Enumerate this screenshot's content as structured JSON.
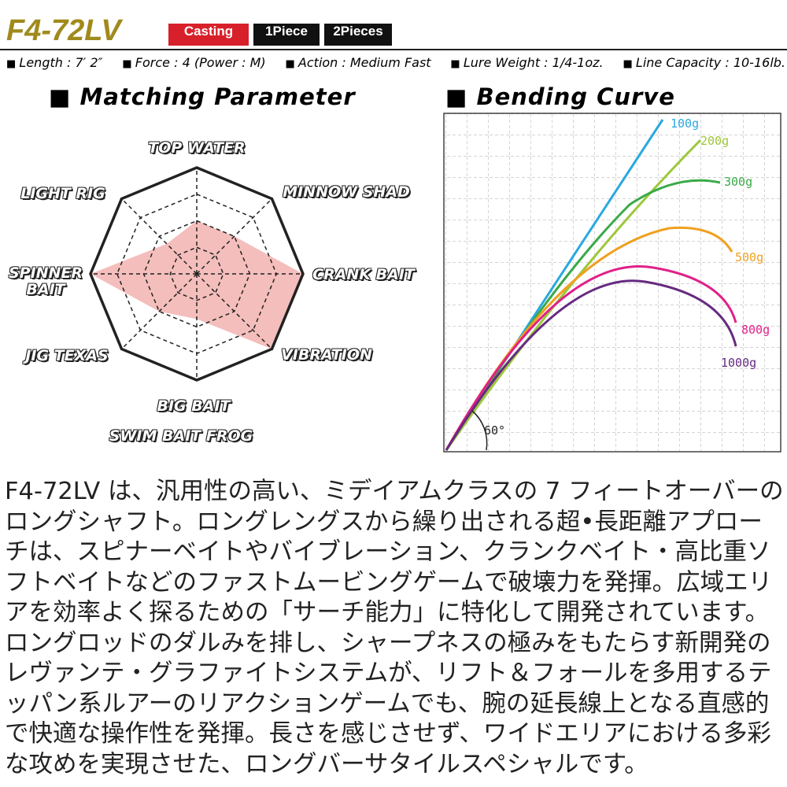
{
  "header": {
    "model": "F4-72LV",
    "tags": [
      "Casting",
      "1Piece",
      "2Pieces"
    ]
  },
  "specs": [
    "Length : 7′ 2″",
    "Force : 4 (Power : M)",
    "Action : Medium Fast",
    "Lure Weight : 1/4-1oz.",
    "Line Capacity : 10-16lb."
  ],
  "chart_data": {
    "type": "radar",
    "title": "Matching Parameter",
    "categories": [
      "TOP WATER",
      "MINNOW SHAD",
      "CRANK BAIT",
      "VIBRATION",
      "BIG BAIT",
      "JIG TEXAS",
      "SPINNER BAIT",
      "LIGHT RIG"
    ],
    "annotation": "SWIM BAIT FROG",
    "values": [
      2,
      2,
      4,
      4,
      1.7,
      2,
      4,
      1.6
    ],
    "rlim": [
      0,
      4
    ],
    "color": "#f2b3b0"
  },
  "bending_curve": {
    "title": "Bending Curve",
    "weights": [
      "100g",
      "200g",
      "300g",
      "500g",
      "800g",
      "1000g"
    ],
    "angle": "60°"
  },
  "description": "F4-72LV は、汎用性の高い、ミデイアムクラスの 7 フィートオーバーのロングシャフト。ロングレングスから繰り出される超•長距離アプローチは、スピナーベイトやバイブレーション、クランクベイト・高比重ソフトベイトなどのファストムービングゲームで破壊力を発揮。広域エリアを効率よく探るための「サーチ能力」に特化して開発されています。ロングロッドのダルみを排し、シャープネスの極みをもたらす新開発のレヴァンテ・グラファイトシステムが、リフト＆フォールを多用するテッパン系ルアーのリアクションゲームでも、腕の延長線上となる直感的で快適な操作性を発揮。長さを感じさせず、ワイドエリアにおける多彩な攻めを実現させた、ロングバーサタイルスペシャルです。"
}
